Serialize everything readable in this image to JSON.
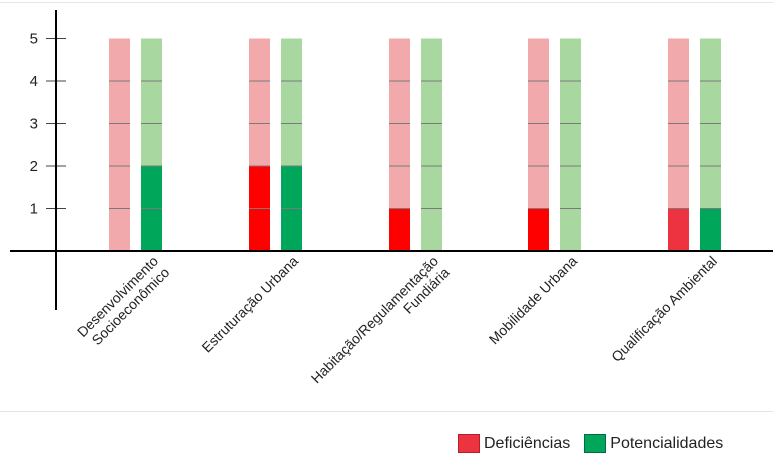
{
  "chart_data": {
    "type": "bar",
    "categories": [
      [
        "Desenvolvimento",
        "Socioeconômico"
      ],
      [
        "Estruturação Urbana"
      ],
      [
        "Habitação/Regulamentação",
        "Fundiária"
      ],
      [
        "Mobilidade Urbana"
      ],
      [
        "Qualificação Ambiental"
      ]
    ],
    "ylim": [
      0,
      5
    ],
    "yticks": [
      1,
      2,
      3,
      4,
      5
    ],
    "max_score": 5,
    "series": [
      {
        "name": "Deficiências",
        "values": [
          0,
          2,
          1,
          1,
          1
        ],
        "color": "#ee3340",
        "color_full": "#ff0000",
        "background_color": "#f2a9ab"
      },
      {
        "name": "Potencialidades",
        "values": [
          2,
          2,
          0,
          0,
          1
        ],
        "color": "#00a65a",
        "background_color": "#a8d8a0"
      }
    ],
    "legend_position": "bottom-right",
    "grid": false
  },
  "legend": {
    "items": [
      {
        "label": "Deficiências",
        "color": "#ee3340"
      },
      {
        "label": "Potencialidades",
        "color": "#00a65a"
      }
    ]
  }
}
